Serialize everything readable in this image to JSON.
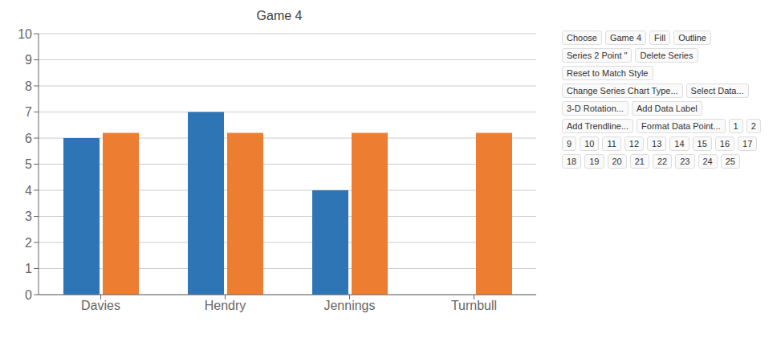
{
  "chart_data": {
    "type": "bar",
    "title": "Game 4",
    "categories": [
      "Davies",
      "Hendry",
      "Jennings",
      "Turnbull"
    ],
    "series": [
      {
        "color": "#2E75B6",
        "values": [
          6,
          7,
          4,
          null
        ]
      },
      {
        "color": "#ED7D31",
        "values": [
          6.2,
          6.2,
          6.2,
          6.2
        ]
      }
    ],
    "ylim": [
      0,
      10
    ],
    "yticks": [
      0,
      1,
      2,
      3,
      4,
      5,
      6,
      7,
      8,
      9,
      10
    ],
    "grid": true,
    "annotations": [
      "Choose",
      "Game 4",
      "Fill",
      "Outline",
      "Series 2 Point \"",
      "Delete Series",
      "Reset to Match Style",
      "Change Series Chart Type...",
      "Select Data...",
      "3-D Rotation...",
      "Add Data Label",
      "Add Trendline...",
      "Format Data Point...",
      "1",
      "2",
      "9",
      "10",
      "11",
      "12",
      "13",
      "14",
      "15",
      "16",
      "17",
      "18",
      "19",
      "20",
      "21",
      "22",
      "23",
      "24",
      "25"
    ]
  }
}
